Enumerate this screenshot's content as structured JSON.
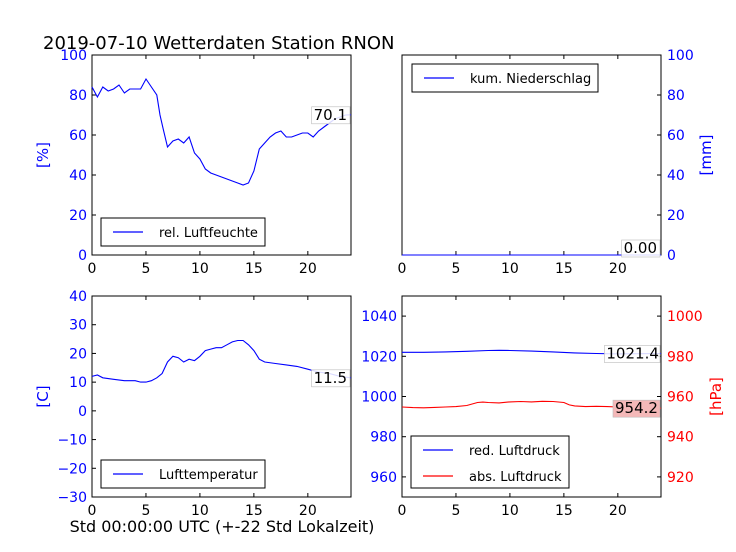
{
  "title": "2019-07-10 Wetterdaten Station RNON",
  "xlabel": "Std 00:00:00 UTC (+-22 Std Lokalzeit)",
  "colors": {
    "blue": "#0000ff",
    "red": "#ff0000",
    "black": "#000000",
    "valuebox_red": "#f4b8b8"
  },
  "chart_data": [
    {
      "type": "line",
      "panel": "top-left",
      "ylabel": "[%]",
      "xlim": [
        0,
        24
      ],
      "ylim": [
        0,
        100
      ],
      "xticks": [
        0,
        5,
        10,
        15,
        20
      ],
      "yticks": [
        0,
        20,
        40,
        60,
        80,
        100
      ],
      "legend": "bottom-left",
      "last_value_label": "70.1",
      "series": [
        {
          "name": "rel. Luftfeuchte",
          "color": "#0000ff",
          "x": [
            0,
            0.5,
            1,
            1.5,
            2,
            2.5,
            3,
            3.5,
            4,
            4.5,
            5,
            5.5,
            6,
            6.3,
            6.6,
            7,
            7.5,
            8,
            8.5,
            9,
            9.5,
            10,
            10.5,
            11,
            11.5,
            12,
            12.5,
            13,
            13.5,
            14,
            14.5,
            15,
            15.5,
            16,
            16.5,
            17,
            17.5,
            18,
            18.5,
            19,
            19.5,
            20,
            20.5,
            21,
            21.5,
            22,
            22.5,
            23,
            23.5,
            24
          ],
          "y": [
            84,
            79,
            84,
            82,
            83,
            85,
            81,
            83,
            83,
            83,
            88,
            84,
            80,
            70,
            63,
            54,
            57,
            58,
            56,
            59,
            51,
            48,
            43,
            41,
            40,
            39,
            38,
            37,
            36,
            35,
            36,
            42,
            53,
            56,
            59,
            61,
            62,
            59,
            59,
            60,
            61,
            61,
            59,
            62,
            64,
            66,
            68,
            69,
            70,
            70.1
          ]
        }
      ]
    },
    {
      "type": "line",
      "panel": "top-right",
      "ylabel": "[mm]",
      "xlim": [
        0,
        24
      ],
      "ylim": [
        0,
        100
      ],
      "xticks": [
        0,
        5,
        10,
        15,
        20
      ],
      "yticks": [
        0,
        20,
        40,
        60,
        80,
        100
      ],
      "legend": "top-left",
      "last_value_label": "0.00",
      "series": [
        {
          "name": "kum. Niederschlag",
          "color": "#0000ff",
          "x": [
            0,
            24
          ],
          "y": [
            0,
            0
          ]
        }
      ]
    },
    {
      "type": "line",
      "panel": "bottom-left",
      "ylabel": "[C]",
      "xlim": [
        0,
        24
      ],
      "ylim": [
        -30,
        40
      ],
      "xticks": [
        0,
        5,
        10,
        15,
        20
      ],
      "yticks": [
        -30,
        -20,
        -10,
        0,
        10,
        20,
        30,
        40
      ],
      "legend": "bottom-left",
      "last_value_label": "11.5",
      "series": [
        {
          "name": "Lufttemperatur",
          "color": "#0000ff",
          "x": [
            0,
            0.5,
            1,
            2,
            3,
            4,
            4.5,
            5,
            5.5,
            6,
            6.5,
            7,
            7.5,
            8,
            8.5,
            9,
            9.5,
            10,
            10.5,
            11,
            11.5,
            12,
            12.5,
            13,
            13.5,
            14,
            14.5,
            15,
            15.5,
            16,
            17,
            18,
            19,
            20,
            21,
            22,
            23,
            24
          ],
          "y": [
            12,
            12.5,
            11.5,
            11,
            10.5,
            10.5,
            10,
            10,
            10.5,
            11.5,
            13,
            17,
            19,
            18.5,
            17,
            18,
            17.5,
            19,
            21,
            21.5,
            22,
            22,
            23,
            24,
            24.5,
            24.5,
            23,
            21,
            18,
            17,
            16.5,
            16,
            15.5,
            14.5,
            13.5,
            13,
            12,
            11.5
          ]
        }
      ]
    },
    {
      "type": "line",
      "panel": "bottom-right",
      "ylabel_right": "[hPa]",
      "xlim": [
        0,
        24
      ],
      "ylim_left": [
        950,
        1050
      ],
      "ylim_right": [
        910,
        1010
      ],
      "xticks": [
        0,
        5,
        10,
        15,
        20
      ],
      "yticks_left": [
        960,
        980,
        1000,
        1020,
        1040
      ],
      "yticks_right": [
        920,
        940,
        960,
        980,
        1000
      ],
      "legend": "bottom-left",
      "series": [
        {
          "name": "red. Luftdruck",
          "color": "#0000ff",
          "axis": "left",
          "last_value_label": "1021.4",
          "x": [
            0,
            2,
            4,
            6,
            8,
            9,
            10,
            12,
            14,
            16,
            18,
            20,
            22,
            24
          ],
          "y": [
            1022,
            1022,
            1022.2,
            1022.5,
            1022.9,
            1023,
            1022.9,
            1022.6,
            1022.2,
            1021.7,
            1021.4,
            1021.2,
            1021.3,
            1021.4
          ]
        },
        {
          "name": "abs. Luftdruck",
          "color": "#ff0000",
          "axis": "right",
          "last_value_label": "954.2",
          "x": [
            0,
            1,
            2,
            3,
            4,
            5,
            6,
            7,
            7.5,
            8,
            9,
            10,
            11,
            12,
            13,
            14,
            15,
            15.5,
            16,
            17,
            18,
            19,
            20,
            21,
            22,
            23,
            24
          ],
          "y": [
            954.8,
            954.5,
            954.4,
            954.6,
            954.8,
            955,
            955.5,
            957,
            957.2,
            957,
            956.8,
            957.3,
            957.5,
            957.3,
            957.6,
            957.5,
            957,
            955.8,
            955.3,
            955,
            955.1,
            955,
            954.8,
            954.6,
            954.4,
            954.3,
            954.2
          ]
        }
      ]
    }
  ]
}
